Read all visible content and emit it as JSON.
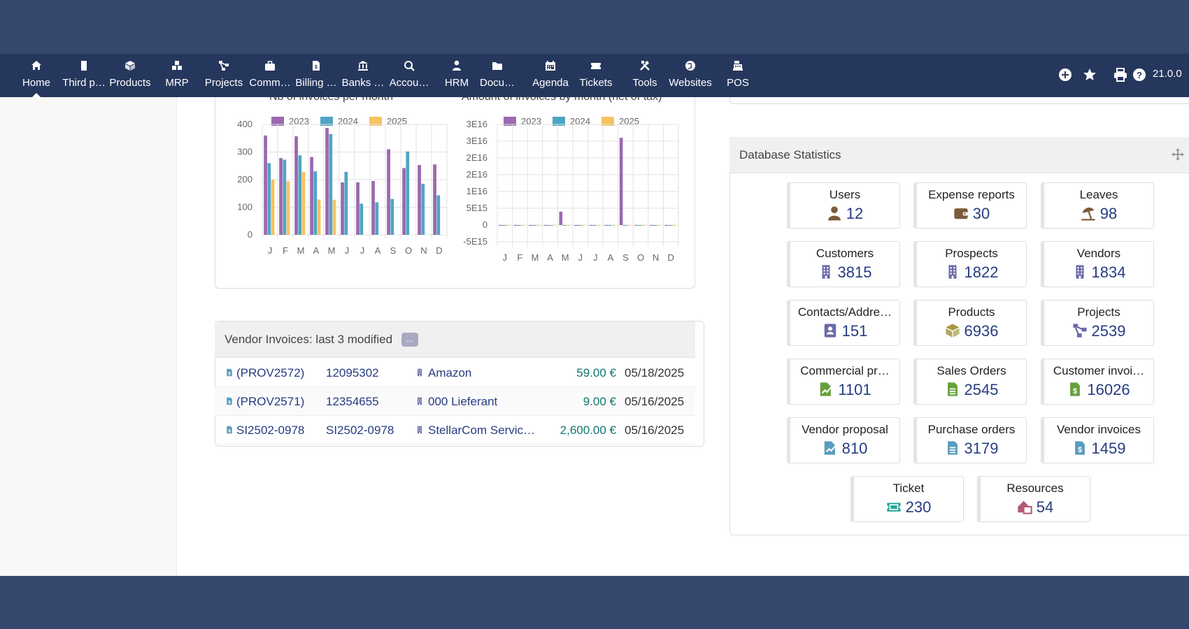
{
  "nav": {
    "items": [
      {
        "label": "Home",
        "icon": "home-icon"
      },
      {
        "label": "Third p…",
        "icon": "building-icon"
      },
      {
        "label": "Products",
        "icon": "cube-icon"
      },
      {
        "label": "MRP",
        "icon": "cubes-icon"
      },
      {
        "label": "Projects",
        "icon": "project-icon"
      },
      {
        "label": "Comm…",
        "icon": "suitcase-icon"
      },
      {
        "label": "Billing …",
        "icon": "invoice-icon"
      },
      {
        "label": "Banks …",
        "icon": "bank-icon"
      },
      {
        "label": "Accou…",
        "icon": "search-dollar-icon"
      },
      {
        "label": "HRM",
        "icon": "user-tie-icon"
      },
      {
        "label": "Docu…",
        "icon": "folder-icon"
      },
      {
        "label": "Agenda",
        "icon": "calendar-icon"
      },
      {
        "label": "Tickets",
        "icon": "ticket-icon"
      },
      {
        "label": "Tools",
        "icon": "tools-icon"
      },
      {
        "label": "Websites",
        "icon": "globe-icon"
      },
      {
        "label": "POS",
        "icon": "cash-register-icon"
      }
    ],
    "right_icons": [
      "plus-circle-icon",
      "star-icon",
      "print-icon",
      "help-icon"
    ],
    "version": "21.0.0"
  },
  "colors": {
    "y2023": "#9b69b0",
    "y2024": "#4fa5c4",
    "y2025": "#f6c360",
    "topbar": "#26375d",
    "background": "#36476e"
  },
  "charts": {
    "left_title": "Nb of invoices per month",
    "right_title": "Amount of invoices by month (net of tax)"
  },
  "chart_data": [
    {
      "type": "bar",
      "title": "Nb of invoices per month",
      "categories": [
        "J",
        "F",
        "M",
        "A",
        "M",
        "J",
        "J",
        "A",
        "S",
        "O",
        "N",
        "D"
      ],
      "series": [
        {
          "name": "2023",
          "values": [
            360,
            278,
            357,
            282,
            387,
            190,
            190,
            195,
            310,
            242,
            253,
            255
          ]
        },
        {
          "name": "2024",
          "values": [
            260,
            272,
            288,
            230,
            365,
            228,
            113,
            118,
            130,
            302,
            185,
            143
          ]
        },
        {
          "name": "2025",
          "values": [
            200,
            194,
            228,
            128,
            127,
            0,
            0,
            0,
            0,
            0,
            0,
            0
          ]
        }
      ],
      "ylim": [
        0,
        400
      ],
      "yticks": [
        "400",
        "300",
        "200",
        "100",
        "0"
      ],
      "legend": "top"
    },
    {
      "type": "bar",
      "title": "Amount of invoices by month (net of tax)",
      "categories": [
        "J",
        "F",
        "M",
        "A",
        "M",
        "J",
        "J",
        "A",
        "S",
        "O",
        "N",
        "D"
      ],
      "series": [
        {
          "name": "2023",
          "values": [
            0,
            0,
            0,
            0,
            4000000000000000.0,
            0,
            0,
            0,
            2.6e+16,
            0,
            0,
            0
          ]
        },
        {
          "name": "2024",
          "values": [
            0,
            0,
            0,
            0,
            0,
            0,
            0,
            0,
            0,
            0,
            0,
            0
          ]
        },
        {
          "name": "2025",
          "values": [
            0,
            0,
            0,
            0,
            0,
            0,
            0,
            0,
            0,
            0,
            0,
            0
          ]
        }
      ],
      "ylim": [
        -5000000000000000.0,
        3e+16
      ],
      "yticks": [
        "3E16",
        "3E16",
        "2E16",
        "2E16",
        "1E16",
        "5E15",
        "0",
        "-5E15"
      ],
      "legend": "top"
    }
  ],
  "vendor_invoices": {
    "title": "Vendor Invoices: last 3 modified",
    "more": "...",
    "rows": [
      {
        "ref": "(PROV2572)",
        "supplier_ref": "12095302",
        "thirdparty": "Amazon",
        "amount": "59.00 €",
        "date": "05/18/2025"
      },
      {
        "ref": "(PROV2571)",
        "supplier_ref": "12354655",
        "thirdparty": "000 Lieferant",
        "amount": "9.00 €",
        "date": "05/16/2025"
      },
      {
        "ref": "SI2502-0978",
        "supplier_ref": "SI2502-0978",
        "thirdparty": "StellarCom Servic…",
        "amount": "2,600.00 €",
        "date": "05/16/2025"
      }
    ]
  },
  "db_stats": {
    "title": "Database Statistics",
    "items": [
      {
        "label": "Users",
        "value": "12",
        "icon": "user-icon",
        "color": "#7b5b3a"
      },
      {
        "label": "Expense reports",
        "value": "30",
        "icon": "wallet-icon",
        "color": "#7b5b3a"
      },
      {
        "label": "Leaves",
        "value": "98",
        "icon": "umbrella-beach-icon",
        "color": "#7b5b3a"
      },
      {
        "label": "Customers",
        "value": "3815",
        "icon": "building-icon",
        "color": "#6c6aa8"
      },
      {
        "label": "Prospects",
        "value": "1822",
        "icon": "building-icon",
        "color": "#6c6aa8"
      },
      {
        "label": "Vendors",
        "value": "1834",
        "icon": "building-icon",
        "color": "#6c6aa8"
      },
      {
        "label": "Contacts/Addre…",
        "value": "151",
        "icon": "address-card-icon",
        "color": "#6c6aa8"
      },
      {
        "label": "Products",
        "value": "6936",
        "icon": "cube-icon",
        "color": "#a69944"
      },
      {
        "label": "Projects",
        "value": "2539",
        "icon": "project-icon",
        "color": "#6c6aa8"
      },
      {
        "label": "Commercial pr…",
        "value": "1101",
        "icon": "file-signature-icon",
        "color": "#65a03c"
      },
      {
        "label": "Sales Orders",
        "value": "2545",
        "icon": "file-text-icon",
        "color": "#65a03c"
      },
      {
        "label": "Customer invoi…",
        "value": "16026",
        "icon": "file-invoice-icon",
        "color": "#65a03c"
      },
      {
        "label": "Vendor proposal",
        "value": "810",
        "icon": "file-signature-icon",
        "color": "#599cbe"
      },
      {
        "label": "Purchase orders",
        "value": "3179",
        "icon": "file-text-icon",
        "color": "#599cbe"
      },
      {
        "label": "Vendor invoices",
        "value": "1459",
        "icon": "file-invoice-icon",
        "color": "#599cbe"
      },
      {
        "label": "Ticket",
        "value": "230",
        "icon": "ticket-icon",
        "color": "#26a69a"
      },
      {
        "label": "Resources",
        "value": "54",
        "icon": "resources-icon",
        "color": "#b35a7a"
      }
    ]
  }
}
